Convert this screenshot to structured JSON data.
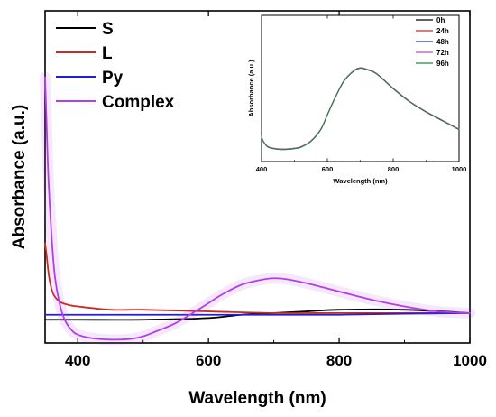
{
  "chart_data": [
    {
      "type": "line",
      "xlabel": "Wavelength (nm)",
      "ylabel": "Absorbance (a.u.)",
      "xlim": [
        350,
        1000
      ],
      "ylim": [
        0,
        1
      ],
      "xticks": [
        400,
        600,
        800,
        1000
      ],
      "legend_position": "top-left",
      "series": [
        {
          "name": "S",
          "color": "#000000",
          "x": [
            350,
            400,
            500,
            600,
            650,
            700,
            750,
            800,
            900,
            1000
          ],
          "y": [
            0.07,
            0.07,
            0.07,
            0.075,
            0.085,
            0.09,
            0.095,
            0.1,
            0.1,
            0.09
          ]
        },
        {
          "name": "L",
          "color": "#cc2b1d",
          "x": [
            350,
            352,
            356,
            362,
            372,
            385,
            400,
            450,
            500,
            600,
            700,
            800,
            900,
            1000
          ],
          "y": [
            0.3,
            0.27,
            0.2,
            0.15,
            0.125,
            0.115,
            0.11,
            0.1,
            0.1,
            0.095,
            0.09,
            0.09,
            0.09,
            0.09
          ]
        },
        {
          "name": "Py",
          "color": "#1f1fd6",
          "x": [
            350,
            400,
            500,
            600,
            700,
            800,
            900,
            1000
          ],
          "y": [
            0.085,
            0.085,
            0.085,
            0.085,
            0.085,
            0.085,
            0.088,
            0.09
          ]
        },
        {
          "name": "Complex",
          "color": "#b33ee6",
          "x": [
            350,
            352,
            355,
            360,
            365,
            372,
            380,
            390,
            400,
            420,
            450,
            480,
            500,
            520,
            550,
            580,
            600,
            620,
            650,
            680,
            700,
            720,
            750,
            800,
            850,
            900,
            950,
            1000
          ],
          "y": [
            0.8,
            0.68,
            0.5,
            0.32,
            0.2,
            0.12,
            0.07,
            0.04,
            0.025,
            0.015,
            0.01,
            0.012,
            0.02,
            0.035,
            0.06,
            0.095,
            0.12,
            0.145,
            0.175,
            0.19,
            0.195,
            0.192,
            0.18,
            0.155,
            0.13,
            0.11,
            0.095,
            0.09
          ]
        }
      ]
    },
    {
      "type": "line",
      "xlabel": "Wavelength (nm)",
      "ylabel": "Absorbance (a.u.)",
      "xlim": [
        400,
        1000
      ],
      "ylim": [
        0,
        1
      ],
      "xticks": [
        400,
        600,
        800,
        1000
      ],
      "legend_position": "top-right",
      "series": [
        {
          "name": "0h",
          "color": "#000000",
          "x": [
            400,
            405,
            420,
            450,
            480,
            500,
            520,
            550,
            580,
            600,
            620,
            650,
            680,
            700,
            720,
            750,
            800,
            850,
            900,
            950,
            1000
          ],
          "y": [
            0.17,
            0.14,
            0.1,
            0.085,
            0.085,
            0.09,
            0.1,
            0.14,
            0.22,
            0.32,
            0.42,
            0.55,
            0.62,
            0.64,
            0.63,
            0.6,
            0.5,
            0.41,
            0.34,
            0.28,
            0.22
          ]
        },
        {
          "name": "24h",
          "color": "#e02020",
          "x": [
            400,
            405,
            420,
            450,
            480,
            500,
            520,
            550,
            580,
            600,
            620,
            650,
            680,
            700,
            720,
            750,
            800,
            850,
            900,
            950,
            1000
          ],
          "y": [
            0.172,
            0.142,
            0.102,
            0.087,
            0.087,
            0.092,
            0.102,
            0.142,
            0.222,
            0.322,
            0.422,
            0.552,
            0.622,
            0.642,
            0.632,
            0.602,
            0.502,
            0.412,
            0.342,
            0.282,
            0.222
          ]
        },
        {
          "name": "48h",
          "color": "#2030d0",
          "x": [
            400,
            405,
            420,
            450,
            480,
            500,
            520,
            550,
            580,
            600,
            620,
            650,
            680,
            700,
            720,
            750,
            800,
            850,
            900,
            950,
            1000
          ],
          "y": [
            0.168,
            0.138,
            0.098,
            0.083,
            0.083,
            0.088,
            0.098,
            0.138,
            0.218,
            0.318,
            0.418,
            0.548,
            0.618,
            0.638,
            0.628,
            0.598,
            0.498,
            0.408,
            0.338,
            0.278,
            0.218
          ]
        },
        {
          "name": "72h",
          "color": "#d040d0",
          "x": [
            400,
            405,
            420,
            450,
            480,
            500,
            520,
            550,
            580,
            600,
            620,
            650,
            680,
            700,
            720,
            750,
            800,
            850,
            900,
            950,
            1000
          ],
          "y": [
            0.171,
            0.141,
            0.101,
            0.086,
            0.086,
            0.091,
            0.101,
            0.141,
            0.221,
            0.321,
            0.421,
            0.551,
            0.621,
            0.641,
            0.631,
            0.601,
            0.501,
            0.411,
            0.341,
            0.281,
            0.221
          ]
        },
        {
          "name": "96h",
          "color": "#1f8a3a",
          "x": [
            400,
            405,
            420,
            450,
            480,
            500,
            520,
            550,
            580,
            600,
            620,
            650,
            680,
            700,
            720,
            750,
            800,
            850,
            900,
            950,
            1000
          ],
          "y": [
            0.169,
            0.139,
            0.099,
            0.084,
            0.084,
            0.089,
            0.099,
            0.139,
            0.219,
            0.319,
            0.419,
            0.549,
            0.619,
            0.639,
            0.629,
            0.599,
            0.499,
            0.409,
            0.339,
            0.279,
            0.219
          ]
        }
      ]
    }
  ]
}
